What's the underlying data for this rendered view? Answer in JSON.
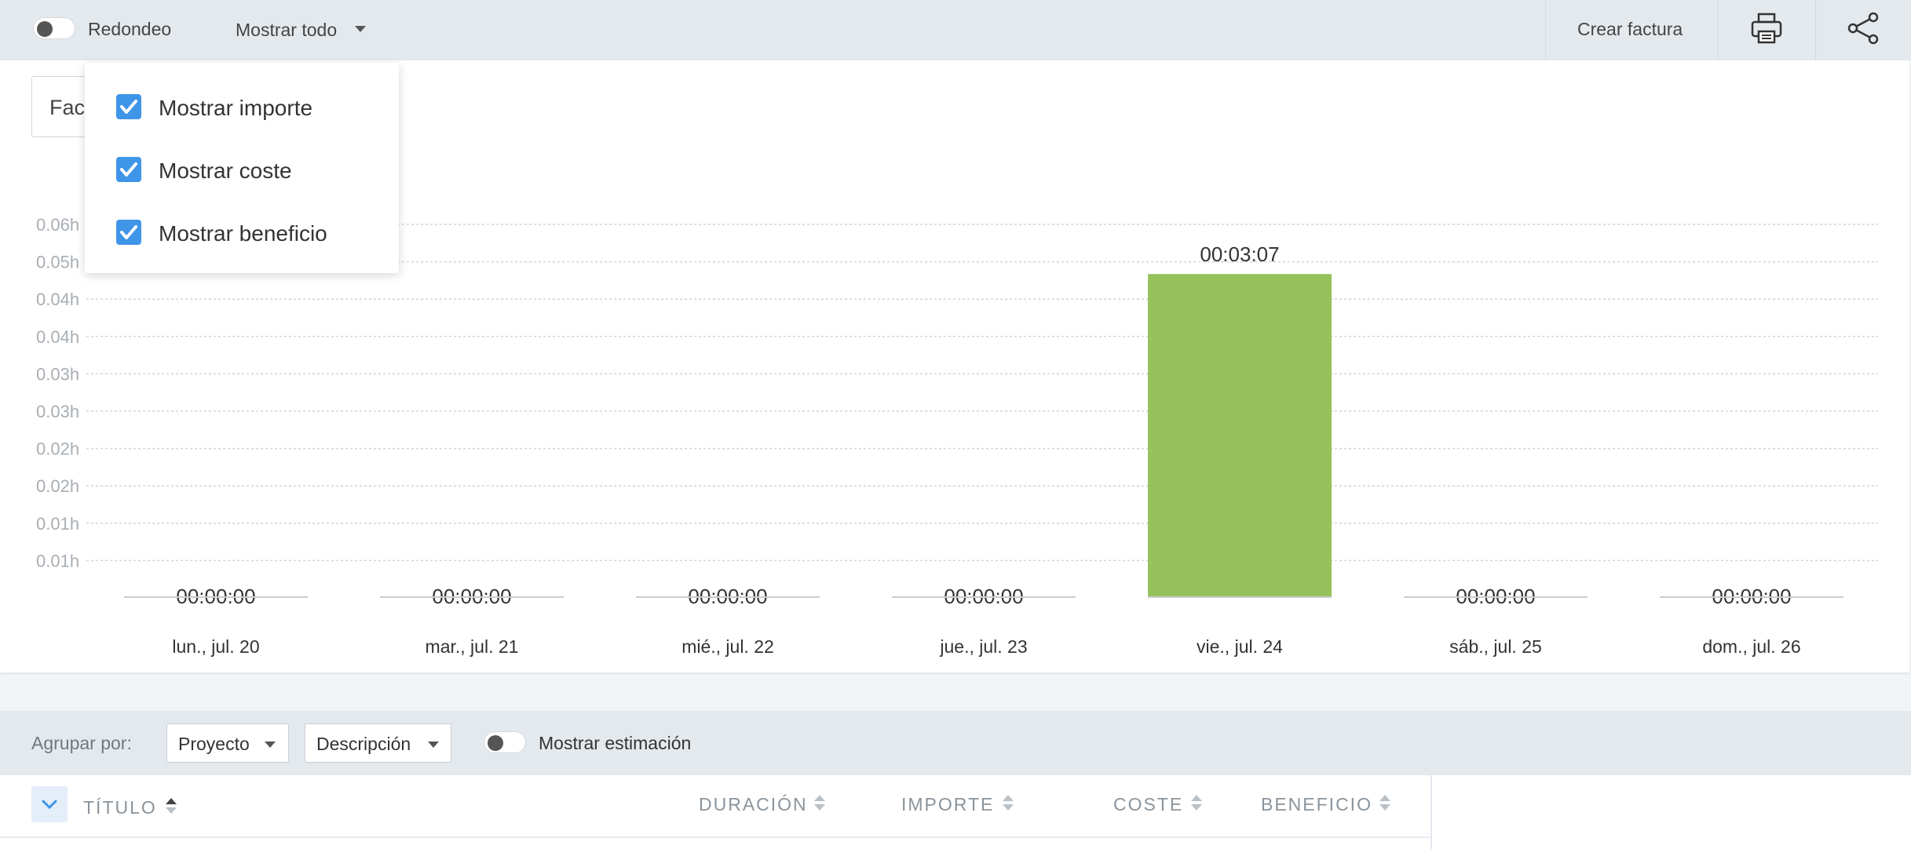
{
  "toolbar": {
    "rounding_label": "Redondeo",
    "show_all_label": "Mostrar todo",
    "create_invoice_label": "Crear factura",
    "print_icon": "printer-icon",
    "share_icon": "share-icon"
  },
  "filter": {
    "partial_text": "Fac"
  },
  "dropdown": {
    "items": [
      {
        "label": "Mostrar importe",
        "checked": true
      },
      {
        "label": "Mostrar coste",
        "checked": true
      },
      {
        "label": "Mostrar beneficio",
        "checked": true
      }
    ]
  },
  "chart_data": {
    "type": "bar",
    "title": "",
    "xlabel": "",
    "ylabel": "",
    "y_ticks": [
      "0.01h",
      "0.01h",
      "0.02h",
      "0.02h",
      "0.03h",
      "0.03h",
      "0.04h",
      "0.04h",
      "0.05h",
      "0.06h"
    ],
    "ylim_hours": [
      0.0,
      0.06
    ],
    "grid": true,
    "bar_color": "#96c25c",
    "categories": [
      "lun., jul. 20",
      "mar., jul. 21",
      "mié., jul. 22",
      "jue., jul. 23",
      "vie., jul. 24",
      "sáb., jul. 25",
      "dom., jul. 26"
    ],
    "value_labels": [
      "00:00:00",
      "00:00:00",
      "00:00:00",
      "00:00:00",
      "00:03:07",
      "00:00:00",
      "00:00:00"
    ],
    "values_hours": [
      0,
      0,
      0,
      0,
      0.052,
      0,
      0
    ]
  },
  "groupbar": {
    "group_by_label": "Agrupar por:",
    "group1": "Proyecto",
    "group2": "Descripción",
    "show_estimate_label": "Mostrar estimación"
  },
  "table": {
    "columns": [
      "TÍTULO",
      "DURACIÓN",
      "IMPORTE",
      "COSTE",
      "BENEFICIO"
    ]
  },
  "colors": {
    "accent": "#3f95e8",
    "bar": "#96c25c",
    "toolbar_bg": "#e4e9ee"
  }
}
